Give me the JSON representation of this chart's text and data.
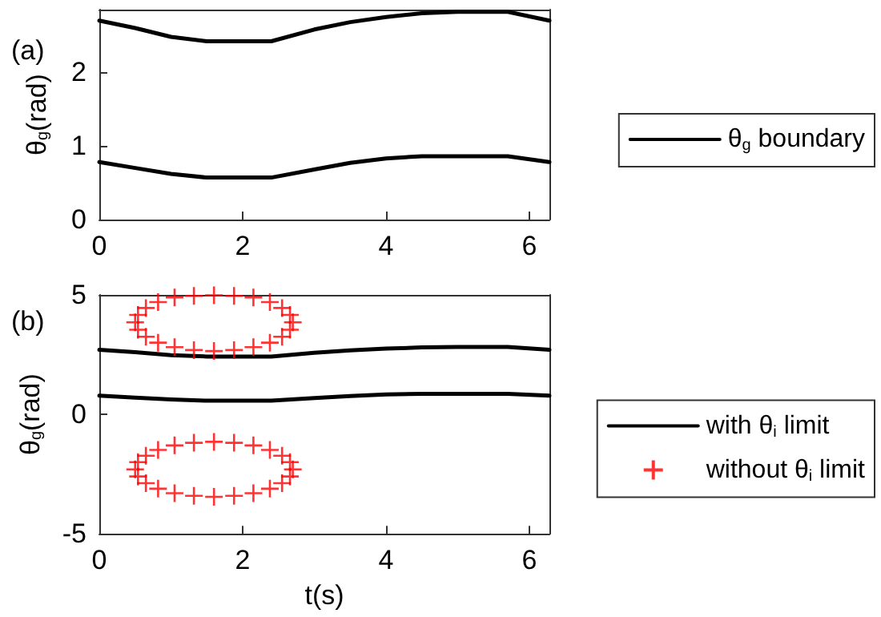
{
  "chart_data": [
    {
      "type": "line",
      "title": "(a)",
      "ylabel": "θ$_{g}$(rad)",
      "xlim": [
        0,
        6.28
      ],
      "xticks": [
        0,
        2,
        4,
        6
      ],
      "ylim": [
        0,
        2.85
      ],
      "yticks": [
        0,
        1,
        2
      ],
      "legend": "right",
      "grid": false,
      "line_style": "solid",
      "marker": "none",
      "series": [
        {
          "name": "θ$_{g}$ boundary",
          "color": "#000000",
          "x": [
            0,
            0.5,
            1,
            1.5,
            2.4,
            3,
            3.5,
            4,
            4.5,
            5,
            5.7,
            6.28
          ],
          "values": [
            2.7,
            2.6,
            2.48,
            2.42,
            2.42,
            2.58,
            2.68,
            2.75,
            2.8,
            2.82,
            2.82,
            2.7
          ]
        },
        {
          "color": "#000000",
          "x": [
            0,
            0.5,
            1,
            1.5,
            2.4,
            3,
            3.5,
            4,
            4.5,
            5,
            5.7,
            6.28
          ],
          "values": [
            0.78,
            0.7,
            0.62,
            0.57,
            0.57,
            0.68,
            0.77,
            0.83,
            0.86,
            0.86,
            0.86,
            0.78
          ]
        }
      ]
    },
    {
      "type": "line",
      "title": "(b)",
      "xlabel": "t(s)",
      "ylabel": "θ$_{g}$(rad)",
      "xlim": [
        0,
        6.28
      ],
      "xticks": [
        0,
        2,
        4,
        6
      ],
      "ylim": [
        -5,
        5
      ],
      "yticks": [
        -5,
        0,
        5
      ],
      "legend": "right",
      "grid": false,
      "line_style": "solid",
      "marker": "none",
      "series": [
        {
          "name": "with θ$_{i}$ limit",
          "color": "#000000",
          "x": [
            0,
            0.5,
            1,
            1.5,
            2.4,
            3,
            3.5,
            4,
            4.5,
            5,
            5.7,
            6.28
          ],
          "values": [
            2.7,
            2.6,
            2.48,
            2.42,
            2.42,
            2.58,
            2.68,
            2.75,
            2.8,
            2.82,
            2.82,
            2.7
          ]
        },
        {
          "color": "#000000",
          "x": [
            0,
            0.5,
            1,
            1.5,
            2.4,
            3,
            3.5,
            4,
            4.5,
            5,
            5.7,
            6.28
          ],
          "values": [
            0.78,
            0.7,
            0.62,
            0.57,
            0.57,
            0.68,
            0.77,
            0.83,
            0.86,
            0.86,
            0.86,
            0.78
          ]
        },
        {
          "name": "without θ$_{i}$ limit",
          "type": "scatter",
          "marker": "cross",
          "color": "#ff0000",
          "x": [
            2.7,
            2.66,
            2.55,
            2.38,
            2.15,
            1.88,
            1.6,
            1.32,
            1.05,
            0.82,
            0.65,
            0.54,
            0.5,
            0.54,
            0.65,
            0.82,
            1.05,
            1.32,
            1.6,
            1.88,
            2.15,
            2.38,
            2.55,
            2.66,
            2.7,
            2.66,
            2.55,
            2.38,
            2.15,
            1.88,
            1.6,
            1.32,
            1.05,
            0.82,
            0.65,
            0.54,
            0.5,
            0.54,
            0.65,
            0.82,
            1.05,
            1.32,
            1.6,
            1.88,
            2.15,
            2.38,
            2.55,
            2.66
          ],
          "values": [
            3.85,
            4.16,
            4.45,
            4.7,
            4.89,
            4.96,
            4.98,
            4.96,
            4.89,
            4.7,
            4.45,
            4.16,
            3.85,
            3.54,
            3.25,
            3.0,
            2.81,
            2.69,
            2.65,
            2.69,
            2.81,
            3.0,
            3.25,
            3.54,
            -2.3,
            -2.0,
            -1.73,
            -1.49,
            -1.3,
            -1.19,
            -1.15,
            -1.19,
            -1.3,
            -1.49,
            -1.73,
            -2.0,
            -2.3,
            -2.6,
            -2.88,
            -3.11,
            -3.3,
            -3.41,
            -3.45,
            -3.41,
            -3.3,
            -3.11,
            -2.88,
            -2.6
          ]
        }
      ]
    }
  ]
}
